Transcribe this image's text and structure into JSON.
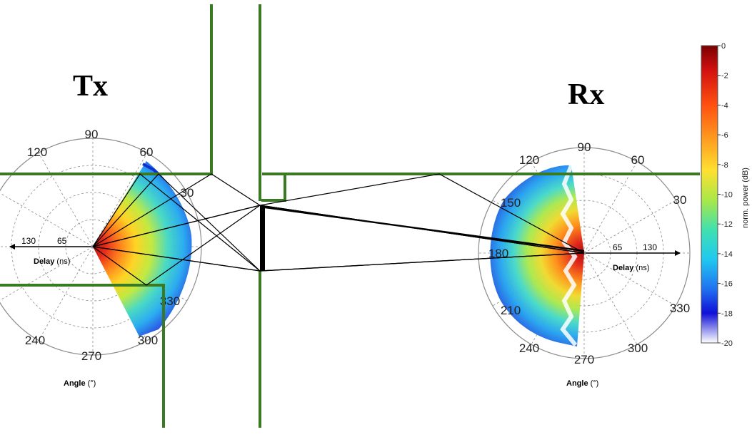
{
  "tx": {
    "title": "Tx",
    "angle_ticks": [
      "90",
      "60",
      "30",
      "330",
      "300",
      "270",
      "240",
      "120"
    ],
    "delay_ticks": [
      "130",
      "65"
    ],
    "delay_label_bold": "Delay",
    "delay_label_unit": " (ns)",
    "angle_label_bold": "Angle",
    "angle_label_unit": " (°)"
  },
  "rx": {
    "title": "Rx",
    "angle_ticks": [
      "120",
      "90",
      "60",
      "150",
      "30",
      "180",
      "210",
      "330",
      "240",
      "270",
      "300"
    ],
    "delay_ticks": [
      "65",
      "130"
    ],
    "delay_label_bold": "Delay",
    "delay_label_unit": " (ns)",
    "angle_label_bold": "Angle",
    "angle_label_unit": " (°)"
  },
  "colorbar": {
    "title": "norm. power (dB)",
    "ticks": [
      "0",
      "-2",
      "-4",
      "-6",
      "-8",
      "-10",
      "-12",
      "-14",
      "-16",
      "-18",
      "-20"
    ]
  },
  "colors": {
    "wall": "#3a7a23",
    "ray": "#000000",
    "grid": "#8c8c8c"
  }
}
